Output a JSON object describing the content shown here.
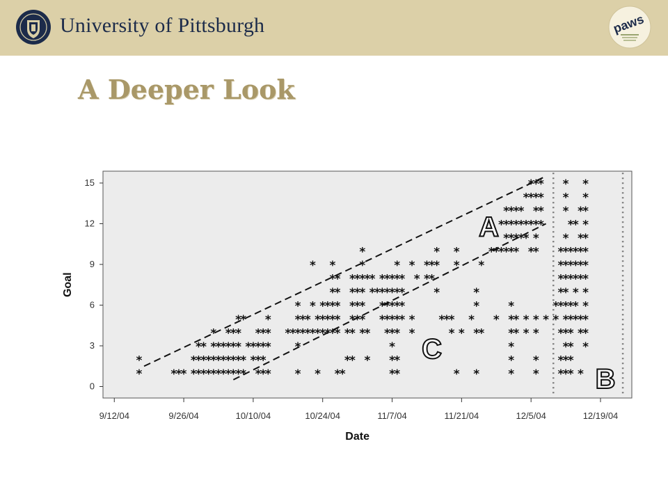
{
  "header": {
    "university": "University of Pittsburgh",
    "logo_name": "paws"
  },
  "slide": {
    "title": "A Deeper Look"
  },
  "colors": {
    "banner": "#dcd0a8",
    "title": "#a99868",
    "navy": "#1c2b4a",
    "plot_bg": "#ececec"
  },
  "chart_data": {
    "type": "scatter",
    "xlabel": "Date",
    "ylabel": "Goal",
    "x_range_days": [
      0,
      102
    ],
    "x_origin": "9/10/04",
    "ylim": [
      -1,
      15.8
    ],
    "x_ticks": [
      {
        "label": "9/12/04",
        "day": 2
      },
      {
        "label": "9/26/04",
        "day": 16
      },
      {
        "label": "10/10/04",
        "day": 30
      },
      {
        "label": "10/24/04",
        "day": 44
      },
      {
        "label": "11/7/04",
        "day": 58
      },
      {
        "label": "11/21/04",
        "day": 72
      },
      {
        "label": "12/5/04",
        "day": 86
      },
      {
        "label": "12/19/04",
        "day": 100
      }
    ],
    "y_ticks": [
      {
        "label": "0",
        "value": 0
      },
      {
        "label": "3",
        "value": 3
      },
      {
        "label": "6",
        "value": 6
      },
      {
        "label": "9",
        "value": 9
      },
      {
        "label": "12",
        "value": 12
      },
      {
        "label": "15",
        "value": 15
      }
    ],
    "marker": "*",
    "points": [
      [
        7,
        1
      ],
      [
        7,
        2
      ],
      [
        14,
        1
      ],
      [
        15,
        1
      ],
      [
        16,
        1
      ],
      [
        18,
        1
      ],
      [
        19,
        1
      ],
      [
        20,
        1
      ],
      [
        21,
        1
      ],
      [
        22,
        1
      ],
      [
        23,
        1
      ],
      [
        24,
        1
      ],
      [
        25,
        1
      ],
      [
        26,
        1
      ],
      [
        27,
        1
      ],
      [
        28,
        1
      ],
      [
        31,
        1
      ],
      [
        32,
        1
      ],
      [
        33,
        1
      ],
      [
        18,
        2
      ],
      [
        19,
        2
      ],
      [
        20,
        2
      ],
      [
        21,
        2
      ],
      [
        22,
        2
      ],
      [
        23,
        2
      ],
      [
        24,
        2
      ],
      [
        25,
        2
      ],
      [
        26,
        2
      ],
      [
        27,
        2
      ],
      [
        28,
        2
      ],
      [
        30,
        2
      ],
      [
        31,
        2
      ],
      [
        32,
        2
      ],
      [
        19,
        3
      ],
      [
        20,
        3
      ],
      [
        22,
        3
      ],
      [
        23,
        3
      ],
      [
        24,
        3
      ],
      [
        25,
        3
      ],
      [
        26,
        3
      ],
      [
        27,
        3
      ],
      [
        29,
        3
      ],
      [
        30,
        3
      ],
      [
        31,
        3
      ],
      [
        32,
        3
      ],
      [
        33,
        3
      ],
      [
        22,
        4
      ],
      [
        25,
        4
      ],
      [
        26,
        4
      ],
      [
        27,
        4
      ],
      [
        31,
        4
      ],
      [
        32,
        4
      ],
      [
        33,
        4
      ],
      [
        27,
        5
      ],
      [
        28,
        5
      ],
      [
        33,
        5
      ],
      [
        39,
        1
      ],
      [
        43,
        1
      ],
      [
        47,
        1
      ],
      [
        48,
        1
      ],
      [
        58,
        1
      ],
      [
        59,
        1
      ],
      [
        71,
        1
      ],
      [
        75,
        1
      ],
      [
        49,
        2
      ],
      [
        50,
        2
      ],
      [
        53,
        2
      ],
      [
        58,
        2
      ],
      [
        59,
        2
      ],
      [
        39,
        3
      ],
      [
        58,
        3
      ],
      [
        37,
        4
      ],
      [
        38,
        4
      ],
      [
        39,
        4
      ],
      [
        40,
        4
      ],
      [
        41,
        4
      ],
      [
        42,
        4
      ],
      [
        43,
        4
      ],
      [
        44,
        4
      ],
      [
        45,
        4
      ],
      [
        46,
        4
      ],
      [
        47,
        4
      ],
      [
        49,
        4
      ],
      [
        50,
        4
      ],
      [
        52,
        4
      ],
      [
        53,
        4
      ],
      [
        57,
        4
      ],
      [
        58,
        4
      ],
      [
        59,
        4
      ],
      [
        62,
        4
      ],
      [
        70,
        4
      ],
      [
        72,
        4
      ],
      [
        75,
        4
      ],
      [
        76,
        4
      ],
      [
        39,
        5
      ],
      [
        40,
        5
      ],
      [
        41,
        5
      ],
      [
        43,
        5
      ],
      [
        44,
        5
      ],
      [
        45,
        5
      ],
      [
        46,
        5
      ],
      [
        47,
        5
      ],
      [
        50,
        5
      ],
      [
        51,
        5
      ],
      [
        52,
        5
      ],
      [
        56,
        5
      ],
      [
        57,
        5
      ],
      [
        58,
        5
      ],
      [
        59,
        5
      ],
      [
        60,
        5
      ],
      [
        62,
        5
      ],
      [
        68,
        5
      ],
      [
        69,
        5
      ],
      [
        70,
        5
      ],
      [
        74,
        5
      ],
      [
        79,
        5
      ],
      [
        39,
        6
      ],
      [
        42,
        6
      ],
      [
        44,
        6
      ],
      [
        45,
        6
      ],
      [
        46,
        6
      ],
      [
        47,
        6
      ],
      [
        50,
        6
      ],
      [
        51,
        6
      ],
      [
        52,
        6
      ],
      [
        56,
        6
      ],
      [
        57,
        6
      ],
      [
        58,
        6
      ],
      [
        59,
        6
      ],
      [
        60,
        6
      ],
      [
        75,
        6
      ],
      [
        46,
        7
      ],
      [
        47,
        7
      ],
      [
        50,
        7
      ],
      [
        51,
        7
      ],
      [
        52,
        7
      ],
      [
        54,
        7
      ],
      [
        55,
        7
      ],
      [
        56,
        7
      ],
      [
        57,
        7
      ],
      [
        58,
        7
      ],
      [
        59,
        7
      ],
      [
        60,
        7
      ],
      [
        67,
        7
      ],
      [
        75,
        7
      ],
      [
        46,
        8
      ],
      [
        47,
        8
      ],
      [
        50,
        8
      ],
      [
        51,
        8
      ],
      [
        52,
        8
      ],
      [
        53,
        8
      ],
      [
        54,
        8
      ],
      [
        56,
        8
      ],
      [
        57,
        8
      ],
      [
        58,
        8
      ],
      [
        59,
        8
      ],
      [
        60,
        8
      ],
      [
        63,
        8
      ],
      [
        65,
        8
      ],
      [
        66,
        8
      ],
      [
        42,
        9
      ],
      [
        46,
        9
      ],
      [
        52,
        9
      ],
      [
        59,
        9
      ],
      [
        62,
        9
      ],
      [
        65,
        9
      ],
      [
        66,
        9
      ],
      [
        67,
        9
      ],
      [
        71,
        9
      ],
      [
        76,
        9
      ],
      [
        52,
        10
      ],
      [
        67,
        10
      ],
      [
        71,
        10
      ],
      [
        82,
        1
      ],
      [
        82,
        2
      ],
      [
        82,
        3
      ],
      [
        82,
        4
      ],
      [
        83,
        4
      ],
      [
        82,
        5
      ],
      [
        83,
        5
      ],
      [
        82,
        6
      ],
      [
        87,
        1
      ],
      [
        87,
        2
      ],
      [
        85,
        4
      ],
      [
        87,
        4
      ],
      [
        85,
        5
      ],
      [
        87,
        5
      ],
      [
        89,
        5
      ],
      [
        78,
        10
      ],
      [
        79,
        10
      ],
      [
        80,
        10
      ],
      [
        81,
        10
      ],
      [
        82,
        10
      ],
      [
        83,
        10
      ],
      [
        86,
        10
      ],
      [
        87,
        10
      ],
      [
        81,
        11
      ],
      [
        82,
        11
      ],
      [
        83,
        11
      ],
      [
        84,
        11
      ],
      [
        85,
        11
      ],
      [
        87,
        11
      ],
      [
        80,
        12
      ],
      [
        81,
        12
      ],
      [
        82,
        12
      ],
      [
        83,
        12
      ],
      [
        84,
        12
      ],
      [
        85,
        12
      ],
      [
        86,
        12
      ],
      [
        87,
        12
      ],
      [
        88,
        12
      ],
      [
        81,
        13
      ],
      [
        82,
        13
      ],
      [
        83,
        13
      ],
      [
        84,
        13
      ],
      [
        87,
        13
      ],
      [
        88,
        13
      ],
      [
        85,
        14
      ],
      [
        86,
        14
      ],
      [
        87,
        14
      ],
      [
        88,
        14
      ],
      [
        86,
        15
      ],
      [
        87,
        15
      ],
      [
        88,
        15
      ],
      [
        92,
        1
      ],
      [
        93,
        1
      ],
      [
        94,
        1
      ],
      [
        96,
        1
      ],
      [
        92,
        2
      ],
      [
        93,
        2
      ],
      [
        94,
        2
      ],
      [
        93,
        3
      ],
      [
        94,
        3
      ],
      [
        97,
        3
      ],
      [
        92,
        4
      ],
      [
        93,
        4
      ],
      [
        94,
        4
      ],
      [
        96,
        4
      ],
      [
        97,
        4
      ],
      [
        91,
        5
      ],
      [
        93,
        5
      ],
      [
        94,
        5
      ],
      [
        95,
        5
      ],
      [
        96,
        5
      ],
      [
        97,
        5
      ],
      [
        91,
        6
      ],
      [
        92,
        6
      ],
      [
        93,
        6
      ],
      [
        94,
        6
      ],
      [
        95,
        6
      ],
      [
        97,
        6
      ],
      [
        92,
        7
      ],
      [
        93,
        7
      ],
      [
        95,
        7
      ],
      [
        97,
        7
      ],
      [
        92,
        8
      ],
      [
        93,
        8
      ],
      [
        94,
        8
      ],
      [
        95,
        8
      ],
      [
        96,
        8
      ],
      [
        97,
        8
      ],
      [
        92,
        9
      ],
      [
        93,
        9
      ],
      [
        94,
        9
      ],
      [
        95,
        9
      ],
      [
        96,
        9
      ],
      [
        97,
        9
      ],
      [
        92,
        10
      ],
      [
        93,
        10
      ],
      [
        94,
        10
      ],
      [
        95,
        10
      ],
      [
        96,
        10
      ],
      [
        97,
        10
      ],
      [
        93,
        11
      ],
      [
        96,
        11
      ],
      [
        97,
        11
      ],
      [
        94,
        12
      ],
      [
        95,
        12
      ],
      [
        97,
        12
      ],
      [
        93,
        13
      ],
      [
        96,
        13
      ],
      [
        97,
        13
      ],
      [
        93,
        14
      ],
      [
        97,
        14
      ],
      [
        93,
        15
      ],
      [
        97,
        15
      ]
    ],
    "reference_lines": [
      {
        "style": "dashed",
        "from": [
          8,
          1.5
        ],
        "to": [
          89,
          15.5
        ]
      },
      {
        "style": "dashed",
        "from": [
          26,
          0.5
        ],
        "to": [
          89,
          12
        ]
      },
      {
        "style": "dotted",
        "from": [
          90.5,
          -0.5
        ],
        "to": [
          90.5,
          15.8
        ]
      },
      {
        "style": "dotted",
        "from": [
          104.5,
          -0.5
        ],
        "to": [
          104.5,
          15.8
        ]
      }
    ],
    "annotations": [
      {
        "text": "A",
        "x": 77.5,
        "y": 11.8
      },
      {
        "text": "B",
        "x": 101,
        "y": 0.6
      },
      {
        "text": "C",
        "x": 66,
        "y": 2.8
      }
    ]
  }
}
